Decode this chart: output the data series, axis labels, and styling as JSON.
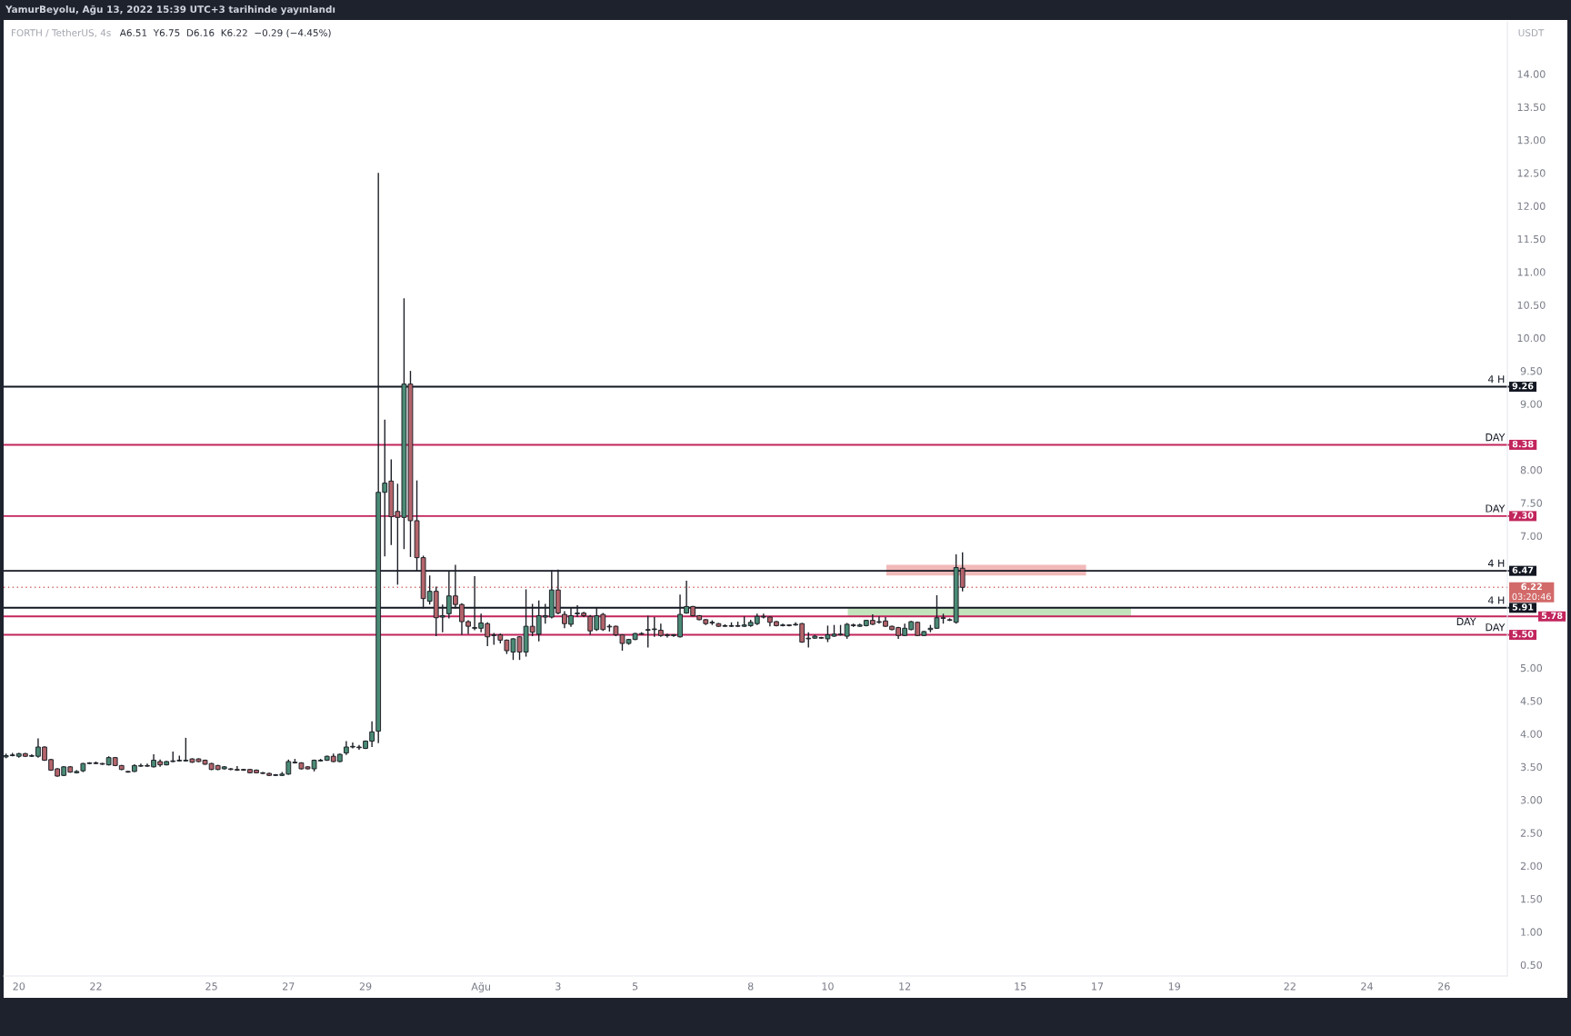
{
  "chart_data": {
    "type": "candlestick",
    "title": "YamurBeyolu, Ağu 13, 2022 15:39 UTC+3 tarihinde yayınlandı",
    "subtitle": "FORTH / TetherUS, 4s",
    "annotations": [
      "A6.51  Y6.75  D6.16  K6.22  −0.29 (−4.45%)",
      {
        "text": "4 H",
        "x": "2022-08-27T14:00",
        "y": 9.26
      },
      {
        "text": "DAY",
        "x": "2022-08-27T14:00",
        "y": 8.38
      },
      {
        "text": "DAY",
        "x": "2022-08-27T14:00",
        "y": 7.3
      },
      {
        "text": "4 H",
        "x": "2022-08-27T14:00",
        "y": 6.47
      },
      "03:20:46",
      {
        "text": "4 H",
        "x": "2022-08-27T14:00",
        "y": 5.91
      },
      {
        "text": "DAY",
        "x": "2022-08-27T14:00",
        "y": 5.78
      },
      {
        "text": "DAY",
        "x": "2022-08-27T14:00",
        "y": 5.5
      }
    ],
    "ylabel": "USDT",
    "x": [
      "2022-07-19T16:00",
      "2022-07-19T20:00",
      "2022-07-20T00:00",
      "2022-07-20T04:00",
      "2022-07-20T08:00",
      "2022-07-20T12:00",
      "2022-07-20T16:00",
      "2022-07-20T20:00",
      "2022-07-21T00:00",
      "2022-07-21T04:00",
      "2022-07-21T08:00",
      "2022-07-21T12:00",
      "2022-07-21T16:00",
      "2022-07-21T20:00",
      "2022-07-22T00:00",
      "2022-07-22T04:00",
      "2022-07-22T08:00",
      "2022-07-22T12:00",
      "2022-07-22T16:00",
      "2022-07-22T20:00",
      "2022-07-23T00:00",
      "2022-07-23T04:00",
      "2022-07-23T08:00",
      "2022-07-23T12:00",
      "2022-07-23T16:00",
      "2022-07-23T20:00",
      "2022-07-24T00:00",
      "2022-07-24T04:00",
      "2022-07-24T08:00",
      "2022-07-24T12:00",
      "2022-07-24T16:00",
      "2022-07-24T20:00",
      "2022-07-25T00:00",
      "2022-07-25T04:00",
      "2022-07-25T08:00",
      "2022-07-25T12:00",
      "2022-07-25T16:00",
      "2022-07-25T20:00",
      "2022-07-26T00:00",
      "2022-07-26T04:00",
      "2022-07-26T08:00",
      "2022-07-26T12:00",
      "2022-07-26T16:00",
      "2022-07-26T20:00",
      "2022-07-27T00:00",
      "2022-07-27T04:00",
      "2022-07-27T08:00",
      "2022-07-27T12:00",
      "2022-07-27T16:00",
      "2022-07-27T20:00",
      "2022-07-28T00:00",
      "2022-07-28T04:00",
      "2022-07-28T08:00",
      "2022-07-28T12:00",
      "2022-07-28T16:00",
      "2022-07-28T20:00",
      "2022-07-29T00:00",
      "2022-07-29T04:00",
      "2022-07-29T08:00",
      "2022-07-29T12:00",
      "2022-07-29T16:00",
      "2022-07-29T20:00",
      "2022-07-30T00:00",
      "2022-07-30T04:00",
      "2022-07-30T08:00",
      "2022-07-30T12:00",
      "2022-07-30T16:00",
      "2022-07-30T20:00",
      "2022-07-31T00:00",
      "2022-07-31T04:00",
      "2022-07-31T08:00",
      "2022-07-31T12:00",
      "2022-07-31T16:00",
      "2022-07-31T20:00",
      "2022-08-01T00:00",
      "2022-08-01T04:00",
      "2022-08-01T08:00",
      "2022-08-01T12:00",
      "2022-08-01T16:00",
      "2022-08-01T20:00",
      "2022-08-02T00:00",
      "2022-08-02T04:00",
      "2022-08-02T08:00",
      "2022-08-02T12:00",
      "2022-08-02T16:00",
      "2022-08-02T20:00",
      "2022-08-03T00:00",
      "2022-08-03T04:00",
      "2022-08-03T08:00",
      "2022-08-03T12:00",
      "2022-08-03T16:00",
      "2022-08-03T20:00",
      "2022-08-04T00:00",
      "2022-08-04T04:00",
      "2022-08-04T08:00",
      "2022-08-04T12:00",
      "2022-08-04T16:00",
      "2022-08-04T20:00",
      "2022-08-05T00:00",
      "2022-08-05T04:00",
      "2022-08-05T08:00",
      "2022-08-05T12:00",
      "2022-08-05T16:00",
      "2022-08-05T20:00",
      "2022-08-06T00:00",
      "2022-08-06T04:00",
      "2022-08-06T08:00",
      "2022-08-06T12:00",
      "2022-08-06T16:00",
      "2022-08-06T20:00",
      "2022-08-07T00:00",
      "2022-08-07T04:00",
      "2022-08-07T08:00",
      "2022-08-07T12:00",
      "2022-08-07T16:00",
      "2022-08-07T20:00",
      "2022-08-08T00:00",
      "2022-08-08T04:00",
      "2022-08-08T08:00",
      "2022-08-08T12:00",
      "2022-08-08T16:00",
      "2022-08-08T20:00",
      "2022-08-09T00:00",
      "2022-08-09T04:00",
      "2022-08-09T08:00",
      "2022-08-09T12:00",
      "2022-08-09T16:00",
      "2022-08-09T20:00",
      "2022-08-10T00:00",
      "2022-08-10T04:00",
      "2022-08-10T08:00",
      "2022-08-10T12:00",
      "2022-08-10T16:00",
      "2022-08-10T20:00",
      "2022-08-11T00:00",
      "2022-08-11T04:00",
      "2022-08-11T08:00",
      "2022-08-11T12:00",
      "2022-08-11T16:00",
      "2022-08-11T20:00",
      "2022-08-12T00:00",
      "2022-08-12T04:00",
      "2022-08-12T08:00",
      "2022-08-12T12:00",
      "2022-08-12T16:00",
      "2022-08-12T20:00",
      "2022-08-13T00:00",
      "2022-08-13T04:00",
      "2022-08-13T08:00",
      "2022-08-13T12:00"
    ],
    "ohlc": [
      [
        3.65,
        3.7,
        3.63,
        3.67
      ],
      [
        3.67,
        3.71,
        3.66,
        3.68
      ],
      [
        3.66,
        3.71,
        3.64,
        3.7
      ],
      [
        3.7,
        3.71,
        3.65,
        3.66
      ],
      [
        3.66,
        3.69,
        3.65,
        3.67
      ],
      [
        3.66,
        3.93,
        3.64,
        3.8
      ],
      [
        3.8,
        3.81,
        3.59,
        3.6
      ],
      [
        3.61,
        3.62,
        3.44,
        3.45
      ],
      [
        3.47,
        3.48,
        3.35,
        3.36
      ],
      [
        3.37,
        3.51,
        3.36,
        3.5
      ],
      [
        3.5,
        3.51,
        3.41,
        3.42
      ],
      [
        3.41,
        3.45,
        3.4,
        3.43
      ],
      [
        3.44,
        3.56,
        3.42,
        3.55
      ],
      [
        3.55,
        3.57,
        3.54,
        3.56
      ],
      [
        3.56,
        3.58,
        3.54,
        3.55
      ],
      [
        3.55,
        3.56,
        3.53,
        3.54
      ],
      [
        3.53,
        3.66,
        3.52,
        3.64
      ],
      [
        3.64,
        3.65,
        3.51,
        3.52
      ],
      [
        3.52,
        3.53,
        3.45,
        3.46
      ],
      [
        3.43,
        3.44,
        3.41,
        3.42
      ],
      [
        3.43,
        3.54,
        3.42,
        3.52
      ],
      [
        3.51,
        3.55,
        3.5,
        3.52
      ],
      [
        3.52,
        3.55,
        3.5,
        3.51
      ],
      [
        3.5,
        3.69,
        3.49,
        3.6
      ],
      [
        3.58,
        3.61,
        3.5,
        3.53
      ],
      [
        3.53,
        3.59,
        3.52,
        3.58
      ],
      [
        3.58,
        3.73,
        3.57,
        3.59
      ],
      [
        3.59,
        3.67,
        3.58,
        3.6
      ],
      [
        3.59,
        3.94,
        3.58,
        3.6
      ],
      [
        3.62,
        3.63,
        3.56,
        3.57
      ],
      [
        3.62,
        3.63,
        3.57,
        3.58
      ],
      [
        3.6,
        3.61,
        3.53,
        3.54
      ],
      [
        3.55,
        3.56,
        3.45,
        3.46
      ],
      [
        3.52,
        3.53,
        3.45,
        3.46
      ],
      [
        3.47,
        3.51,
        3.46,
        3.5
      ],
      [
        3.47,
        3.48,
        3.45,
        3.46
      ],
      [
        3.46,
        3.51,
        3.44,
        3.45
      ],
      [
        3.46,
        3.47,
        3.44,
        3.45
      ],
      [
        3.46,
        3.47,
        3.4,
        3.41
      ],
      [
        3.45,
        3.46,
        3.4,
        3.41
      ],
      [
        3.41,
        3.42,
        3.39,
        3.4
      ],
      [
        3.4,
        3.41,
        3.36,
        3.37
      ],
      [
        3.37,
        3.39,
        3.36,
        3.38
      ],
      [
        3.37,
        3.42,
        3.36,
        3.39
      ],
      [
        3.39,
        3.61,
        3.38,
        3.58
      ],
      [
        3.57,
        3.62,
        3.55,
        3.56
      ],
      [
        3.56,
        3.57,
        3.46,
        3.47
      ],
      [
        3.5,
        3.51,
        3.46,
        3.47
      ],
      [
        3.47,
        3.61,
        3.43,
        3.6
      ],
      [
        3.59,
        3.62,
        3.58,
        3.6
      ],
      [
        3.6,
        3.67,
        3.59,
        3.66
      ],
      [
        3.66,
        3.7,
        3.57,
        3.58
      ],
      [
        3.58,
        3.7,
        3.57,
        3.69
      ],
      [
        3.71,
        3.89,
        3.68,
        3.8
      ],
      [
        3.8,
        3.87,
        3.78,
        3.81
      ],
      [
        3.8,
        3.83,
        3.76,
        3.79
      ],
      [
        3.78,
        3.9,
        3.77,
        3.89
      ],
      [
        3.89,
        4.19,
        3.8,
        4.03
      ],
      [
        4.04,
        12.5,
        3.86,
        7.66
      ],
      [
        7.66,
        8.76,
        6.69,
        7.8
      ],
      [
        7.83,
        8.16,
        6.86,
        7.29
      ],
      [
        7.37,
        7.79,
        6.26,
        7.28
      ],
      [
        7.28,
        10.6,
        6.8,
        9.3
      ],
      [
        9.3,
        9.5,
        6.68,
        7.23
      ],
      [
        7.23,
        7.84,
        6.47,
        6.67
      ],
      [
        6.67,
        6.7,
        5.9,
        6.05
      ],
      [
        6.01,
        6.4,
        5.96,
        6.16
      ],
      [
        6.16,
        6.23,
        5.48,
        5.76
      ],
      [
        5.77,
        5.96,
        5.54,
        5.79
      ],
      [
        5.82,
        6.47,
        5.75,
        6.09
      ],
      [
        6.09,
        6.56,
        5.9,
        5.96
      ],
      [
        5.96,
        5.98,
        5.5,
        5.7
      ],
      [
        5.7,
        5.72,
        5.51,
        5.63
      ],
      [
        5.6,
        6.39,
        5.57,
        5.61
      ],
      [
        5.6,
        5.82,
        5.54,
        5.68
      ],
      [
        5.67,
        5.69,
        5.33,
        5.47
      ],
      [
        5.49,
        5.53,
        5.35,
        5.5
      ],
      [
        5.5,
        5.52,
        5.37,
        5.42
      ],
      [
        5.42,
        5.43,
        5.21,
        5.26
      ],
      [
        5.24,
        5.45,
        5.12,
        5.44
      ],
      [
        5.47,
        5.48,
        5.12,
        5.24
      ],
      [
        5.24,
        6.19,
        5.17,
        5.63
      ],
      [
        5.63,
        5.97,
        5.48,
        5.54
      ],
      [
        5.51,
        6.02,
        5.4,
        5.79
      ],
      [
        5.77,
        5.97,
        5.67,
        5.79
      ],
      [
        5.77,
        6.48,
        5.75,
        6.18
      ],
      [
        6.18,
        6.49,
        5.81,
        5.83
      ],
      [
        5.81,
        5.86,
        5.6,
        5.67
      ],
      [
        5.66,
        5.92,
        5.62,
        5.79
      ],
      [
        5.82,
        5.95,
        5.77,
        5.83
      ],
      [
        5.83,
        5.85,
        5.77,
        5.79
      ],
      [
        5.78,
        5.8,
        5.5,
        5.56
      ],
      [
        5.58,
        5.91,
        5.56,
        5.79
      ],
      [
        5.81,
        5.83,
        5.56,
        5.58
      ],
      [
        5.63,
        5.66,
        5.55,
        5.62
      ],
      [
        5.63,
        5.64,
        5.48,
        5.5
      ],
      [
        5.5,
        5.51,
        5.26,
        5.37
      ],
      [
        5.37,
        5.44,
        5.35,
        5.43
      ],
      [
        5.43,
        5.53,
        5.42,
        5.52
      ],
      [
        5.51,
        5.54,
        5.5,
        5.52
      ],
      [
        5.57,
        5.79,
        5.31,
        5.58
      ],
      [
        5.58,
        5.77,
        5.47,
        5.59
      ],
      [
        5.57,
        5.67,
        5.47,
        5.49
      ],
      [
        5.5,
        5.52,
        5.46,
        5.49
      ],
      [
        5.49,
        5.51,
        5.47,
        5.5
      ],
      [
        5.47,
        6.11,
        5.46,
        5.81
      ],
      [
        5.83,
        6.32,
        5.82,
        5.93
      ],
      [
        5.93,
        5.94,
        5.78,
        5.79
      ],
      [
        5.79,
        5.8,
        5.72,
        5.73
      ],
      [
        5.73,
        5.74,
        5.65,
        5.67
      ],
      [
        5.68,
        5.72,
        5.65,
        5.69
      ],
      [
        5.67,
        5.68,
        5.62,
        5.63
      ],
      [
        5.63,
        5.66,
        5.62,
        5.64
      ],
      [
        5.63,
        5.69,
        5.62,
        5.64
      ],
      [
        5.64,
        5.7,
        5.62,
        5.63
      ],
      [
        5.63,
        5.78,
        5.62,
        5.65
      ],
      [
        5.64,
        5.73,
        5.62,
        5.69
      ],
      [
        5.67,
        5.82,
        5.65,
        5.78
      ],
      [
        5.77,
        5.82,
        5.75,
        5.78
      ],
      [
        5.77,
        5.78,
        5.63,
        5.69
      ],
      [
        5.7,
        5.71,
        5.63,
        5.64
      ],
      [
        5.64,
        5.67,
        5.63,
        5.65
      ],
      [
        5.65,
        5.66,
        5.63,
        5.64
      ],
      [
        5.65,
        5.69,
        5.64,
        5.66
      ],
      [
        5.67,
        5.68,
        5.38,
        5.39
      ],
      [
        5.44,
        5.54,
        5.31,
        5.45
      ],
      [
        5.45,
        5.5,
        5.44,
        5.48
      ],
      [
        5.46,
        5.47,
        5.44,
        5.45
      ],
      [
        5.44,
        5.64,
        5.39,
        5.5
      ],
      [
        5.48,
        5.65,
        5.47,
        5.51
      ],
      [
        5.5,
        5.65,
        5.49,
        5.51
      ],
      [
        5.48,
        5.68,
        5.44,
        5.66
      ],
      [
        5.65,
        5.67,
        5.62,
        5.64
      ],
      [
        5.63,
        5.67,
        5.62,
        5.65
      ],
      [
        5.64,
        5.73,
        5.63,
        5.72
      ],
      [
        5.72,
        5.81,
        5.65,
        5.66
      ],
      [
        5.69,
        5.78,
        5.67,
        5.7
      ],
      [
        5.71,
        5.77,
        5.62,
        5.63
      ],
      [
        5.63,
        5.64,
        5.57,
        5.58
      ],
      [
        5.61,
        5.62,
        5.44,
        5.49
      ],
      [
        5.49,
        5.67,
        5.48,
        5.6
      ],
      [
        5.58,
        5.71,
        5.57,
        5.7
      ],
      [
        5.69,
        5.7,
        5.48,
        5.49
      ],
      [
        5.49,
        5.56,
        5.48,
        5.55
      ],
      [
        5.58,
        5.65,
        5.54,
        5.6
      ],
      [
        5.6,
        6.1,
        5.59,
        5.76
      ],
      [
        5.76,
        5.82,
        5.67,
        5.75
      ],
      [
        5.73,
        5.75,
        5.71,
        5.72
      ],
      [
        5.69,
        6.72,
        5.67,
        6.52
      ],
      [
        6.51,
        6.75,
        6.16,
        6.22
      ]
    ],
    "colors": [
      "#4a8b75",
      "#4a8b75",
      "#4a8b75",
      "#b5646b",
      "#4a8b75",
      "#4a8b75",
      "#b5646b",
      "#b5646b",
      "#b5646b",
      "#4a8b75",
      "#b5646b",
      "#4a8b75",
      "#4a8b75",
      "#4a8b75",
      "#b5646b",
      "#b5646b",
      "#4a8b75",
      "#b5646b",
      "#b5646b",
      "#b5646b",
      "#4a8b75",
      "#4a8b75",
      "#b5646b",
      "#4a8b75",
      "#b5646b",
      "#4a8b75",
      "#4a8b75",
      "#4a8b75",
      "#4a8b75",
      "#b5646b",
      "#b5646b",
      "#b5646b",
      "#b5646b",
      "#b5646b",
      "#4a8b75",
      "#b5646b",
      "#b5646b",
      "#b5646b",
      "#b5646b",
      "#b5646b",
      "#b5646b",
      "#b5646b",
      "#4a8b75",
      "#4a8b75",
      "#4a8b75",
      "#b5646b",
      "#b5646b",
      "#b5646b",
      "#4a8b75",
      "#4a8b75",
      "#4a8b75",
      "#b5646b",
      "#4a8b75",
      "#4a8b75",
      "#4a8b75",
      "#b5646b",
      "#4a8b75",
      "#4a8b75",
      "#4a8b75",
      "#4a8b75",
      "#b5646b",
      "#b5646b",
      "#4a8b75",
      "#b5646b",
      "#b5646b",
      "#b5646b",
      "#4a8b75",
      "#b5646b",
      "#4a8b75",
      "#4a8b75",
      "#b5646b",
      "#b5646b",
      "#b5646b",
      "#4a8b75",
      "#4a8b75",
      "#b5646b",
      "#4a8b75",
      "#b5646b",
      "#b5646b",
      "#4a8b75",
      "#b5646b",
      "#4a8b75",
      "#b5646b",
      "#4a8b75",
      "#4a8b75",
      "#4a8b75",
      "#b5646b",
      "#b5646b",
      "#4a8b75",
      "#4a8b75",
      "#b5646b",
      "#b5646b",
      "#4a8b75",
      "#b5646b",
      "#b5646b",
      "#b5646b",
      "#b5646b",
      "#4a8b75",
      "#4a8b75",
      "#4a8b75",
      "#4a8b75",
      "#4a8b75",
      "#b5646b",
      "#b5646b",
      "#4a8b75",
      "#4a8b75",
      "#4a8b75",
      "#b5646b",
      "#b5646b",
      "#b5646b",
      "#4a8b75",
      "#b5646b",
      "#4a8b75",
      "#4a8b75",
      "#b5646b",
      "#4a8b75",
      "#4a8b75",
      "#4a8b75",
      "#4a8b75",
      "#b5646b",
      "#b5646b",
      "#4a8b75",
      "#b5646b",
      "#4a8b75",
      "#b5646b",
      "#4a8b75",
      "#4a8b75",
      "#b5646b",
      "#4a8b75",
      "#4a8b75",
      "#4a8b75",
      "#4a8b75",
      "#b5646b",
      "#4a8b75",
      "#4a8b75",
      "#b5646b",
      "#4a8b75",
      "#b5646b",
      "#b5646b",
      "#b5646b",
      "#4a8b75",
      "#4a8b75",
      "#b5646b",
      "#4a8b75",
      "#4a8b75",
      "#4a8b75",
      "#b5646b",
      "#b5646b",
      "#4a8b75",
      "#b5646b"
    ],
    "series": [
      {
        "type": "area",
        "color": "#f2b9b9",
        "x": [
          "2022-08-11T12:30",
          "2022-08-16T17:00"
        ],
        "values": [
          null,
          null
        ],
        "lower": [
          6.4,
          6.4
        ],
        "upper": [
          6.56,
          6.56
        ]
      },
      {
        "type": "area",
        "color": "#c3e3bd",
        "x": [
          "2022-08-10T12:30",
          "2022-08-17T21:00"
        ],
        "values": [
          null,
          null
        ],
        "lower": [
          5.78,
          5.78
        ],
        "upper": [
          5.91,
          5.91
        ]
      }
    ],
    "ref_lines": [
      {
        "axis": "y",
        "value": 9.26,
        "label": "9.26",
        "color": "#131722"
      },
      {
        "axis": "y",
        "value": 8.38,
        "label": "8.38",
        "color": "#c2255c"
      },
      {
        "axis": "y",
        "value": 7.3,
        "label": "7.30",
        "color": "#c2255c"
      },
      {
        "axis": "y",
        "value": 6.47,
        "label": "6.47",
        "color": "#131722"
      },
      {
        "axis": "y",
        "value": 6.22,
        "label": "6.22",
        "color": "#d26a6a",
        "line_style": "dotted"
      },
      {
        "axis": "y",
        "value": 5.91,
        "label": "5.91",
        "color": "#131722"
      },
      {
        "axis": "y",
        "value": 5.78,
        "label": "5.78",
        "color": "#c2255c"
      },
      {
        "axis": "y",
        "value": 5.5,
        "label": "5.50",
        "color": "#c2255c"
      }
    ],
    "xlim": [
      "2022-07-19T14:30",
      "2022-08-27T15:30"
    ],
    "ylim": [
      0.33,
      14.79
    ],
    "xticks": [
      {
        "value": "2022-07-20",
        "label": "20"
      },
      {
        "value": "2022-07-22",
        "label": "22"
      },
      {
        "value": "2022-07-25",
        "label": "25"
      },
      {
        "value": "2022-07-27",
        "label": "27"
      },
      {
        "value": "2022-07-29",
        "label": "29"
      },
      {
        "value": "2022-08-01",
        "label": "Ağu"
      },
      {
        "value": "2022-08-03",
        "label": "3"
      },
      {
        "value": "2022-08-05",
        "label": "5"
      },
      {
        "value": "2022-08-08",
        "label": "8"
      },
      {
        "value": "2022-08-10",
        "label": "10"
      },
      {
        "value": "2022-08-12",
        "label": "12"
      },
      {
        "value": "2022-08-15",
        "label": "15"
      },
      {
        "value": "2022-08-17",
        "label": "17"
      },
      {
        "value": "2022-08-19",
        "label": "19"
      },
      {
        "value": "2022-08-22",
        "label": "22"
      },
      {
        "value": "2022-08-24",
        "label": "24"
      },
      {
        "value": "2022-08-26",
        "label": "26"
      }
    ],
    "yticks": [
      {
        "value": 0.5,
        "label": "0.50"
      },
      {
        "value": 1.0,
        "label": "1.00"
      },
      {
        "value": 1.5,
        "label": "1.50"
      },
      {
        "value": 2.0,
        "label": "2.00"
      },
      {
        "value": 2.5,
        "label": "2.50"
      },
      {
        "value": 3.0,
        "label": "3.00"
      },
      {
        "value": 3.5,
        "label": "3.50"
      },
      {
        "value": 4.0,
        "label": "4.00"
      },
      {
        "value": 4.5,
        "label": "4.50"
      },
      {
        "value": 5.0,
        "label": "5.00"
      },
      {
        "value": 7.0,
        "label": "7.00"
      },
      {
        "value": 7.5,
        "label": "7.50"
      },
      {
        "value": 8.0,
        "label": "8.00"
      },
      {
        "value": 9.0,
        "label": "9.00"
      },
      {
        "value": 9.5,
        "label": "9.50"
      },
      {
        "value": 10.0,
        "label": "10.00"
      },
      {
        "value": 10.5,
        "label": "10.50"
      },
      {
        "value": 11.0,
        "label": "11.00"
      },
      {
        "value": 11.5,
        "label": "11.50"
      },
      {
        "value": 12.0,
        "label": "12.00"
      },
      {
        "value": 12.5,
        "label": "12.50"
      },
      {
        "value": 13.0,
        "label": "13.00"
      },
      {
        "value": 13.5,
        "label": "13.50"
      },
      {
        "value": 14.0,
        "label": "14.00"
      }
    ]
  }
}
